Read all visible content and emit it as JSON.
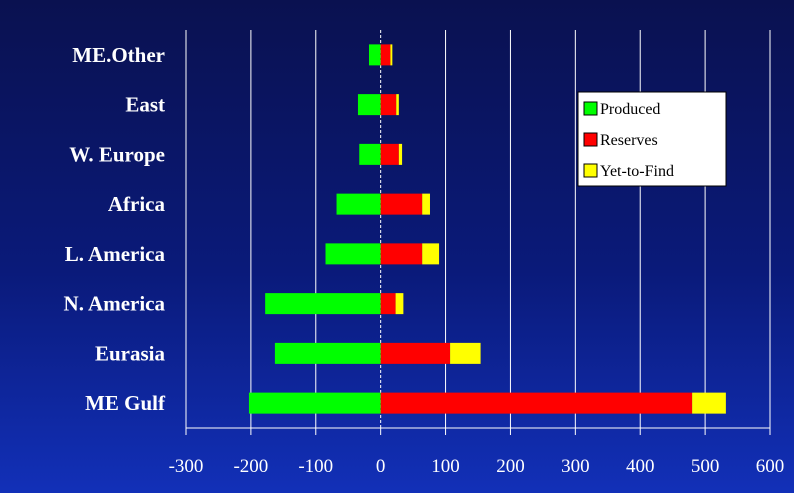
{
  "chart_data": {
    "type": "bar",
    "orientation": "horizontal",
    "stacked": true,
    "title": "",
    "xlabel": "",
    "ylabel": "",
    "categories": [
      "ME.Other",
      "East",
      "W. Europe",
      "Africa",
      "L. America",
      "N. America",
      "Eurasia",
      "ME Gulf"
    ],
    "series": [
      {
        "name": "Produced",
        "color": "#00ff00",
        "values": [
          -18,
          -35,
          -33,
          -68,
          -85,
          -178,
          -163,
          -203
        ]
      },
      {
        "name": "Reserves",
        "color": "#ff0000",
        "values": [
          15,
          24,
          28,
          64,
          64,
          23,
          107,
          480
        ]
      },
      {
        "name": "Yet-to-Find",
        "color": "#ffff00",
        "values": [
          3,
          4,
          5,
          12,
          26,
          12,
          47,
          52
        ]
      }
    ],
    "xlim": [
      -300,
      600
    ],
    "xticks": [
      "-300",
      "-200",
      "-100",
      "0",
      "100",
      "200",
      "300",
      "400",
      "500",
      "600"
    ],
    "grid": "vertical",
    "legend_position": "top-right",
    "colors": {
      "background": "#0a1a7a",
      "grid": "#ffffff",
      "legend_bg": "#ffffff"
    }
  }
}
